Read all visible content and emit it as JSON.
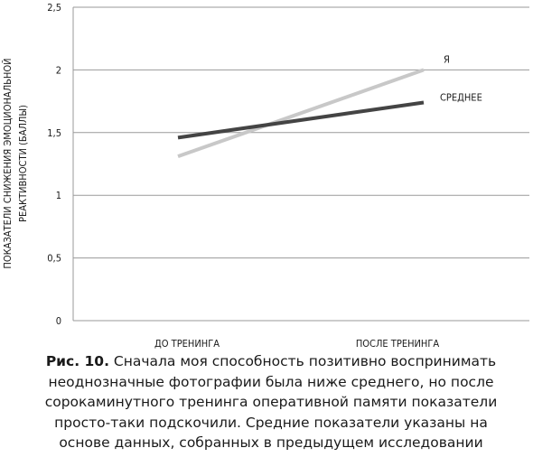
{
  "chart_data": {
    "type": "line",
    "categories": [
      "ДО ТРЕНИНГА",
      "ПОСЛЕ ТРЕНИНГА"
    ],
    "series": [
      {
        "name": "Я",
        "values": [
          1.31,
          2.0
        ],
        "color": "#c8c8c8"
      },
      {
        "name": "СРЕДНЕЕ",
        "values": [
          1.46,
          1.74
        ],
        "color": "#444444"
      }
    ],
    "ylim": [
      0,
      2.5
    ],
    "yticks": [
      "0",
      "0,5",
      "1",
      "1,5",
      "2",
      "2,5"
    ],
    "ylabel_lines": [
      "ПОКАЗАТЕЛИ СНИЖЕНИЯ ЭМОЦИОНАЛЬНОЙ",
      "РЕАКТИВНОСТИ (БАЛЛЫ)"
    ],
    "grid": true,
    "legend": "series labels at line ends"
  },
  "caption": {
    "label": "Рис. 10.",
    "text": "Сначала моя способность позитивно воспринимать неоднозначные фотографии была ниже среднего, но после сорокаминутного тренинга оперативной памяти показатели просто-таки подскочили. Средние показатели указаны на основе данных, собранных в предыдущем исследовании"
  }
}
